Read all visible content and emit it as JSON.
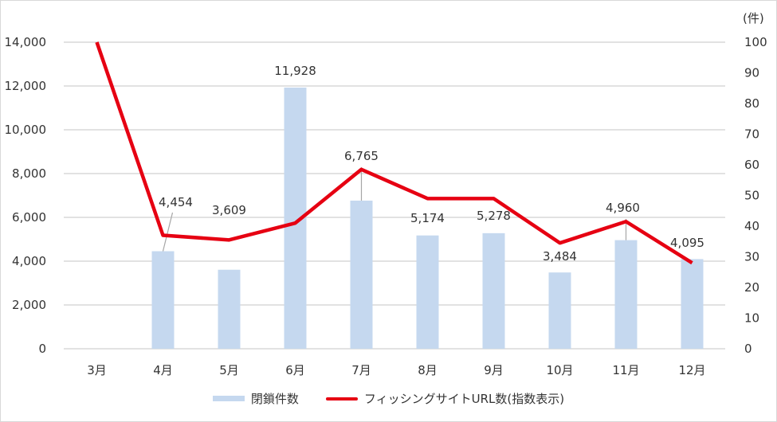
{
  "chart_data": {
    "type": "bar+line",
    "title": "",
    "categories": [
      "3月",
      "4月",
      "5月",
      "6月",
      "7月",
      "8月",
      "9月",
      "10月",
      "11月",
      "12月"
    ],
    "series": [
      {
        "name": "閉鎖件数",
        "type": "bar",
        "axis": "left",
        "color": "#c5d8ef",
        "values": [
          null,
          4454,
          3609,
          11928,
          6765,
          5174,
          5278,
          3484,
          4960,
          4095
        ],
        "labels": [
          "",
          "4,454",
          "3,609",
          "11,928",
          "6,765",
          "5,174",
          "5,278",
          "3,484",
          "4,960",
          "4,095"
        ]
      },
      {
        "name": "フィッシングサイトURL数(指数表示)",
        "type": "line",
        "axis": "right",
        "color": "#e60012",
        "values": [
          100,
          37,
          35.5,
          41,
          58.5,
          49,
          49,
          34.5,
          41.5,
          28
        ]
      }
    ],
    "left_axis": {
      "ylim": [
        0,
        14000
      ],
      "ticks": [
        "0",
        "2,000",
        "4,000",
        "6,000",
        "8,000",
        "10,000",
        "12,000",
        "14,000"
      ]
    },
    "right_axis": {
      "unit_label": "(件)",
      "ylim": [
        0,
        100
      ],
      "ticks": [
        "0",
        "10",
        "20",
        "30",
        "40",
        "50",
        "60",
        "70",
        "80",
        "90",
        "100"
      ]
    },
    "grid": true,
    "legend_position": "bottom"
  },
  "legend": {
    "bar_label": "閉鎖件数",
    "line_label": "フィッシングサイトURL数(指数表示)"
  }
}
